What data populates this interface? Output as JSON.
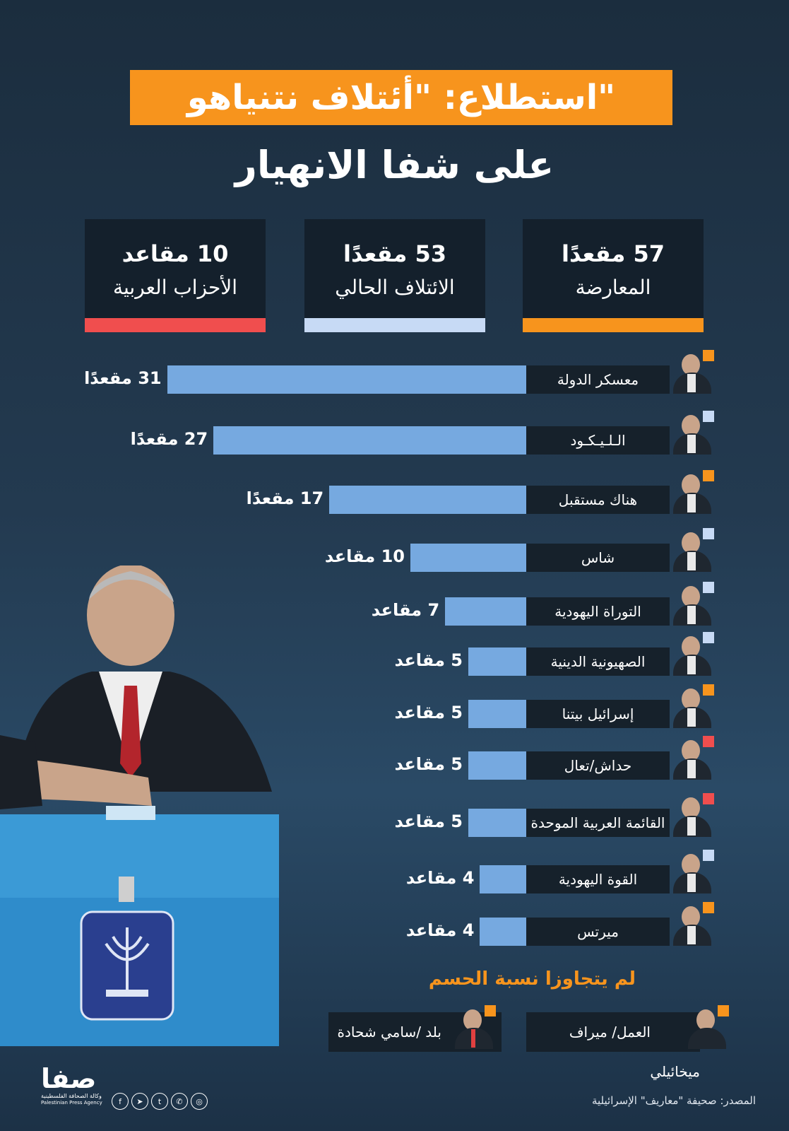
{
  "title": "استطلاع: \"أئتلاف نتنياهو\"",
  "subtitle": "على شفا الانهيار",
  "summary": [
    {
      "number": "57 مقعدًا",
      "label": "المعارضة",
      "color": "#f7941d"
    },
    {
      "number": "53 مقعدًا",
      "label": "الائتلاف الحالي",
      "color": "#c7daf5"
    },
    {
      "number": "10 مقاعد",
      "label": "الأحزاب العربية",
      "color": "#f04e4e"
    }
  ],
  "chart_data": {
    "type": "bar",
    "orientation": "horizontal",
    "categories": [
      "معسكر الدولة",
      "الـلـيـكـود",
      "هناك مستقبل",
      "شاس",
      "التوراة اليهودية",
      "الصهيونية الدينية",
      "إسرائيل بيتنا",
      "حداش/تعال",
      "القائمة العربية الموحدة",
      "القوة اليهودية",
      "ميرتس"
    ],
    "values": [
      31,
      27,
      17,
      10,
      7,
      5,
      5,
      5,
      5,
      4,
      4
    ],
    "value_labels": [
      "31 مقعدًا",
      "27 مقعدًا",
      "17 مقعدًا",
      "10 مقاعد",
      "7 مقاعد",
      "5 مقاعد",
      "5 مقاعد",
      "5 مقاعد",
      "5 مقاعد",
      "4 مقاعد",
      "4 مقاعد"
    ],
    "accent_colors": [
      "#f7941d",
      "#c7daf5",
      "#f7941d",
      "#c7daf5",
      "#c7daf5",
      "#c7daf5",
      "#f7941d",
      "#f04e4e",
      "#f04e4e",
      "#c7daf5",
      "#f7941d"
    ],
    "bar_color": "#76a9e0"
  },
  "threshold": {
    "title": "لم يتجاوزا نسبة الحسم",
    "parties": [
      "العمل/ ميراف ميخائيلي",
      "بلد /سامي شحادة"
    ]
  },
  "footer": {
    "source": "المصدر: صحيفة \"معاريف\" الإسرائيلية",
    "logo_text": "صفا",
    "logo_sub_ar": "وكالة الصحافة الفلسطينية",
    "logo_sub_en": "Palestinian Press Agency",
    "social_icons": [
      "facebook-icon",
      "telegram-icon",
      "twitter-icon",
      "whatsapp-icon",
      "instagram-icon"
    ]
  }
}
